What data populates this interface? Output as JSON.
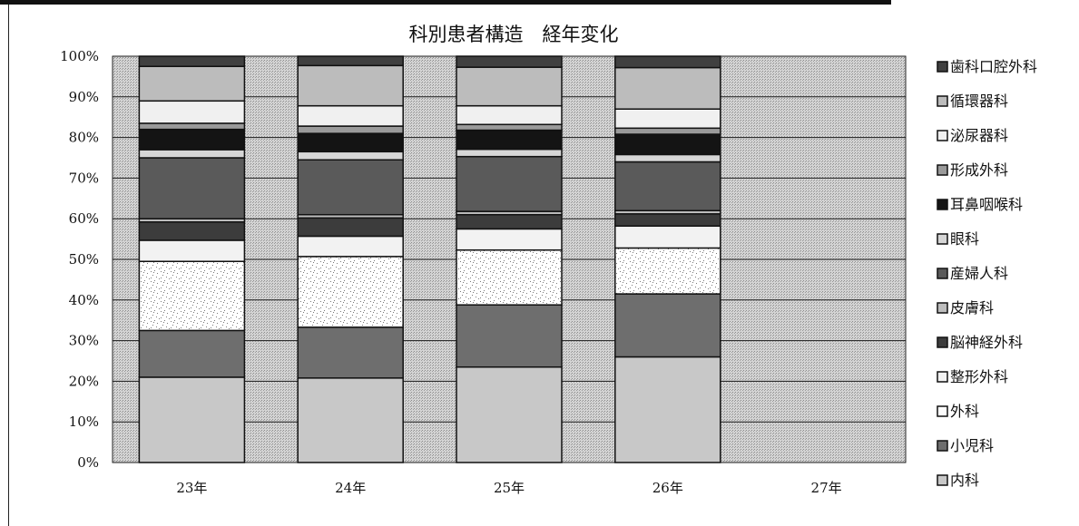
{
  "chart_data": {
    "type": "bar",
    "stacked": true,
    "normalized": true,
    "title": "科別患者構造　経年変化",
    "categories": [
      "23年",
      "24年",
      "25年",
      "26年",
      "27年"
    ],
    "ylim": [
      0,
      100
    ],
    "yticks": [
      "0%",
      "10%",
      "20%",
      "30%",
      "40%",
      "50%",
      "60%",
      "70%",
      "80%",
      "90%",
      "100%"
    ],
    "grid": true,
    "legend_position": "right",
    "series": [
      {
        "name": "内科",
        "values": [
          21.0,
          20.8,
          23.5,
          26.0,
          null
        ],
        "fill": "#c8c8c8"
      },
      {
        "name": "小児科",
        "values": [
          11.5,
          12.5,
          15.3,
          15.5,
          null
        ],
        "fill": "#6e6e6e"
      },
      {
        "name": "外科",
        "values": [
          17.0,
          17.4,
          13.5,
          11.3,
          null
        ],
        "fill": "#fcfcfc"
      },
      {
        "name": "整形外科",
        "values": [
          5.2,
          5.0,
          5.2,
          5.4,
          null
        ],
        "fill": "#f2f2f2"
      },
      {
        "name": "脳神経外科",
        "values": [
          4.5,
          4.5,
          3.5,
          3.0,
          null
        ],
        "fill": "#3c3c3c"
      },
      {
        "name": "皮膚科",
        "values": [
          0.8,
          0.8,
          0.8,
          0.8,
          null
        ],
        "fill": "#bdbdbd"
      },
      {
        "name": "産婦人科",
        "values": [
          15.0,
          13.5,
          13.5,
          12.0,
          null
        ],
        "fill": "#5a5a5a"
      },
      {
        "name": "眼科",
        "values": [
          2.0,
          2.0,
          1.8,
          1.8,
          null
        ],
        "fill": "#d6d6d6"
      },
      {
        "name": "耳鼻咽喉科",
        "values": [
          5.0,
          4.5,
          4.7,
          5.0,
          null
        ],
        "fill": "#141414"
      },
      {
        "name": "形成外科",
        "values": [
          1.5,
          1.8,
          1.4,
          1.5,
          null
        ],
        "fill": "#9a9a9a"
      },
      {
        "name": "泌尿器科",
        "values": [
          5.5,
          5.0,
          4.6,
          4.7,
          null
        ],
        "fill": "#f0f0f0"
      },
      {
        "name": "循環器科",
        "values": [
          8.5,
          9.9,
          9.5,
          10.2,
          null
        ],
        "fill": "#bcbcbc"
      },
      {
        "name": "歯科口腔外科",
        "values": [
          2.5,
          2.3,
          2.7,
          2.8,
          null
        ],
        "fill": "#404040"
      }
    ]
  }
}
